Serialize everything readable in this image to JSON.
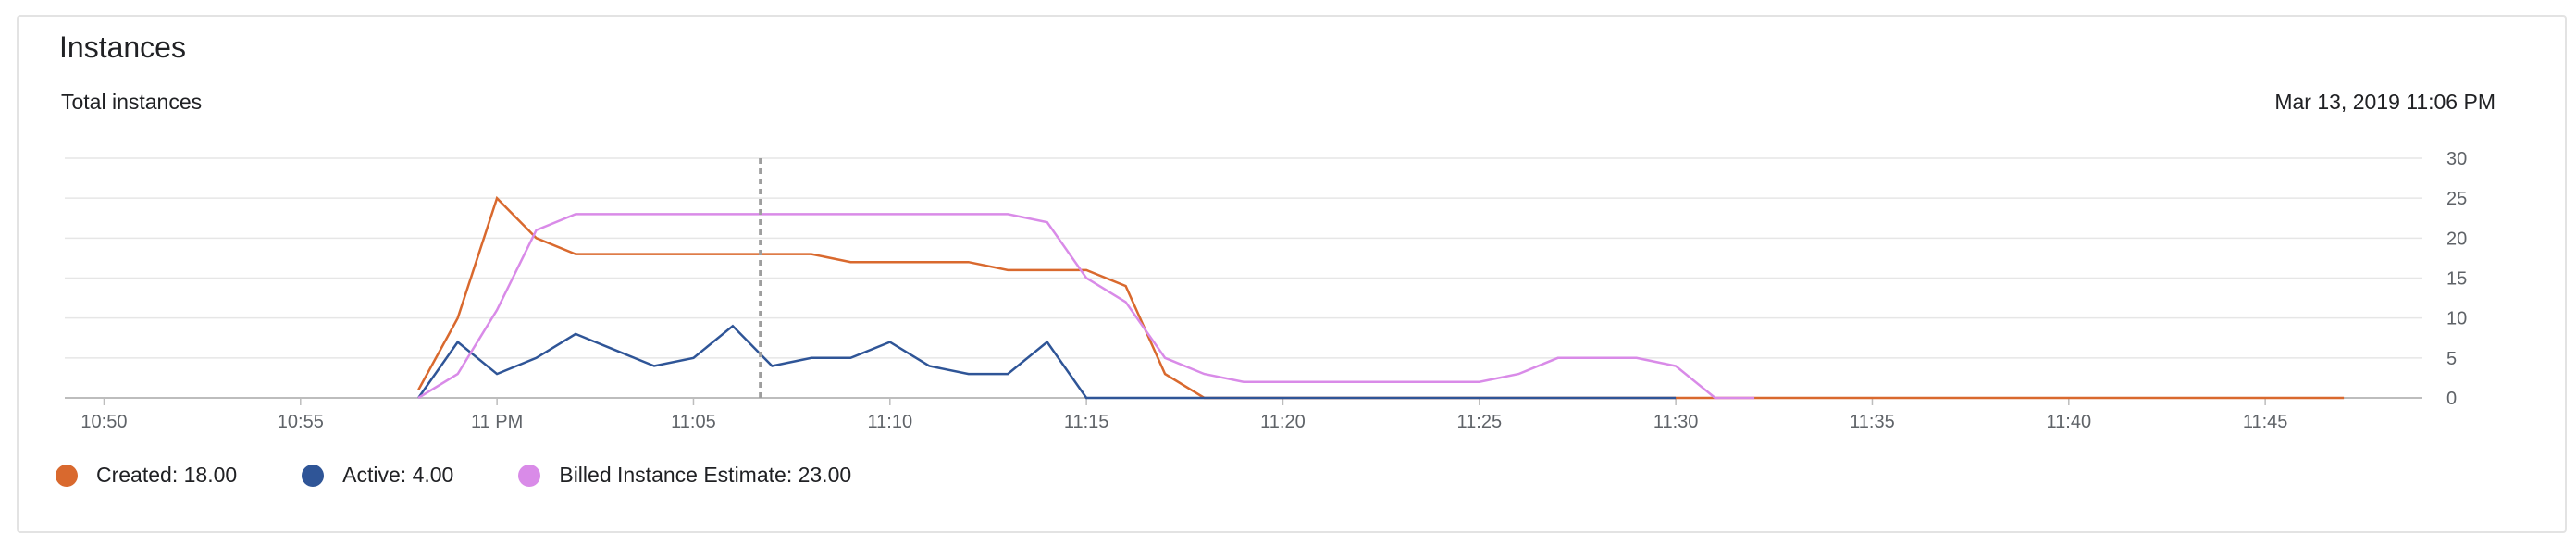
{
  "card": {
    "title": "Instances",
    "subtitle": "Total instances",
    "timestamp": "Mar 13, 2019 11:06 PM"
  },
  "colors": {
    "created": "#d9692e",
    "active": "#2f5597",
    "billed": "#d98be8",
    "grid": "#e6e6e6",
    "axis": "#bdbdbd",
    "cursor": "#9e9e9e"
  },
  "legend": [
    {
      "label": "Created: 18.00",
      "color": "#d9692e"
    },
    {
      "label": "Active: 4.00",
      "color": "#2f5597"
    },
    {
      "label": "Billed Instance Estimate: 23.00",
      "color": "#d98be8"
    }
  ],
  "chart_data": {
    "type": "line",
    "title": "Total instances",
    "xlabel": "",
    "ylabel": "",
    "x_range_minutes": [
      -11.0,
      49.0
    ],
    "ylim": [
      0,
      30
    ],
    "y_ticks": [
      0,
      5,
      10,
      15,
      20,
      25,
      30
    ],
    "y_axis_side": "right",
    "x_ticks": [
      {
        "label": "10:50",
        "minute": -10
      },
      {
        "label": "10:55",
        "minute": -5
      },
      {
        "label": "11 PM",
        "minute": 0
      },
      {
        "label": "11:05",
        "minute": 5
      },
      {
        "label": "11:10",
        "minute": 10
      },
      {
        "label": "11:15",
        "minute": 15
      },
      {
        "label": "11:20",
        "minute": 20
      },
      {
        "label": "11:25",
        "minute": 25
      },
      {
        "label": "11:30",
        "minute": 30
      },
      {
        "label": "11:35",
        "minute": 35
      },
      {
        "label": "11:40",
        "minute": 40
      },
      {
        "label": "11:45",
        "minute": 45
      }
    ],
    "cursor_minute": 6.7,
    "grid": true,
    "legend_position": "bottom-left",
    "series": [
      {
        "name": "Created",
        "color": "#d9692e",
        "points": [
          [
            -2,
            1
          ],
          [
            -1,
            10
          ],
          [
            0,
            25
          ],
          [
            1,
            20
          ],
          [
            2,
            18
          ],
          [
            3,
            18
          ],
          [
            4,
            18
          ],
          [
            5,
            18
          ],
          [
            6,
            18
          ],
          [
            7,
            18
          ],
          [
            8,
            18
          ],
          [
            9,
            17
          ],
          [
            10,
            17
          ],
          [
            11,
            17
          ],
          [
            12,
            17
          ],
          [
            13,
            16
          ],
          [
            14,
            16
          ],
          [
            15,
            16
          ],
          [
            16,
            14
          ],
          [
            17,
            3
          ],
          [
            18,
            0
          ],
          [
            19,
            0
          ],
          [
            20,
            0
          ],
          [
            21,
            0
          ],
          [
            22,
            0
          ],
          [
            23,
            0
          ],
          [
            24,
            0
          ],
          [
            25,
            0
          ],
          [
            26,
            0
          ],
          [
            27,
            0
          ],
          [
            28,
            0
          ],
          [
            29,
            0
          ],
          [
            30,
            0
          ],
          [
            31,
            0
          ],
          [
            32,
            0
          ],
          [
            33,
            0
          ],
          [
            34,
            0
          ],
          [
            35,
            0
          ],
          [
            36,
            0
          ],
          [
            37,
            0
          ],
          [
            38,
            0
          ],
          [
            39,
            0
          ],
          [
            40,
            0
          ],
          [
            41,
            0
          ],
          [
            42,
            0
          ],
          [
            43,
            0
          ],
          [
            44,
            0
          ],
          [
            45,
            0
          ],
          [
            46,
            0
          ],
          [
            47,
            0
          ]
        ]
      },
      {
        "name": "Active",
        "color": "#2f5597",
        "points": [
          [
            -2,
            0
          ],
          [
            -1,
            7
          ],
          [
            0,
            3
          ],
          [
            1,
            5
          ],
          [
            2,
            8
          ],
          [
            3,
            6
          ],
          [
            4,
            4
          ],
          [
            5,
            5
          ],
          [
            6,
            9
          ],
          [
            7,
            4
          ],
          [
            8,
            5
          ],
          [
            9,
            5
          ],
          [
            10,
            7
          ],
          [
            11,
            4
          ],
          [
            12,
            3
          ],
          [
            13,
            3
          ],
          [
            14,
            7
          ],
          [
            15,
            0
          ],
          [
            16,
            0
          ],
          [
            17,
            0
          ],
          [
            18,
            0
          ],
          [
            19,
            0
          ],
          [
            20,
            0
          ],
          [
            21,
            0
          ],
          [
            22,
            0
          ],
          [
            23,
            0
          ],
          [
            24,
            0
          ],
          [
            25,
            0
          ],
          [
            26,
            0
          ],
          [
            27,
            0
          ],
          [
            28,
            0
          ],
          [
            29,
            0
          ],
          [
            30,
            0
          ]
        ]
      },
      {
        "name": "Billed Instance Estimate",
        "color": "#d98be8",
        "points": [
          [
            -2,
            0
          ],
          [
            -1,
            3
          ],
          [
            0,
            11
          ],
          [
            1,
            21
          ],
          [
            2,
            23
          ],
          [
            3,
            23
          ],
          [
            4,
            23
          ],
          [
            5,
            23
          ],
          [
            6,
            23
          ],
          [
            7,
            23
          ],
          [
            8,
            23
          ],
          [
            9,
            23
          ],
          [
            10,
            23
          ],
          [
            11,
            23
          ],
          [
            12,
            23
          ],
          [
            13,
            23
          ],
          [
            14,
            22
          ],
          [
            15,
            15
          ],
          [
            16,
            12
          ],
          [
            17,
            5
          ],
          [
            18,
            3
          ],
          [
            19,
            2
          ],
          [
            20,
            2
          ],
          [
            21,
            2
          ],
          [
            22,
            2
          ],
          [
            23,
            2
          ],
          [
            24,
            2
          ],
          [
            25,
            2
          ],
          [
            26,
            3
          ],
          [
            27,
            5
          ],
          [
            28,
            5
          ],
          [
            29,
            5
          ],
          [
            30,
            4
          ],
          [
            31,
            0
          ],
          [
            32,
            0
          ]
        ]
      }
    ]
  }
}
